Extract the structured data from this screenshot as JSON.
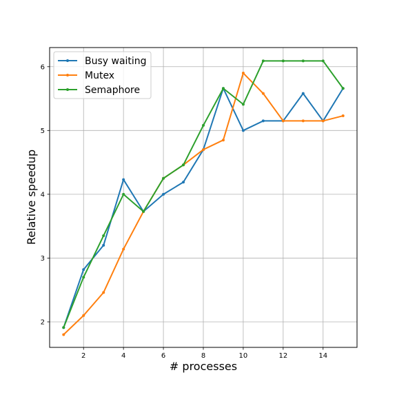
{
  "chart_data": {
    "type": "line",
    "title": "",
    "xlabel": "# processes",
    "ylabel": "Relative speedup",
    "xlim": [
      0.3,
      15.7
    ],
    "ylim": [
      1.6,
      6.3
    ],
    "xticks": [
      2,
      4,
      6,
      8,
      10,
      12,
      14
    ],
    "yticks": [
      2,
      3,
      4,
      5,
      6
    ],
    "grid": true,
    "legend_position": "top-left",
    "x": [
      1,
      2,
      3,
      4,
      5,
      6,
      7,
      8,
      9,
      10,
      11,
      12,
      13,
      14,
      15
    ],
    "series": [
      {
        "name": "Busy waiting",
        "color": "#1f77b4",
        "values": [
          1.91,
          2.82,
          3.2,
          4.23,
          3.73,
          4.0,
          4.19,
          4.7,
          5.66,
          5.0,
          5.15,
          5.15,
          5.58,
          5.15,
          5.66
        ]
      },
      {
        "name": "Mutex",
        "color": "#ff7f0e",
        "values": [
          1.8,
          2.1,
          2.46,
          3.14,
          3.73,
          4.25,
          4.46,
          4.7,
          4.85,
          5.9,
          5.58,
          5.15,
          5.15,
          5.15,
          5.23
        ]
      },
      {
        "name": "Semaphore",
        "color": "#2ca02c",
        "values": [
          1.91,
          2.7,
          3.35,
          4.0,
          3.73,
          4.25,
          4.46,
          5.08,
          5.66,
          5.41,
          6.09,
          6.09,
          6.09,
          6.09,
          5.66
        ]
      }
    ]
  }
}
